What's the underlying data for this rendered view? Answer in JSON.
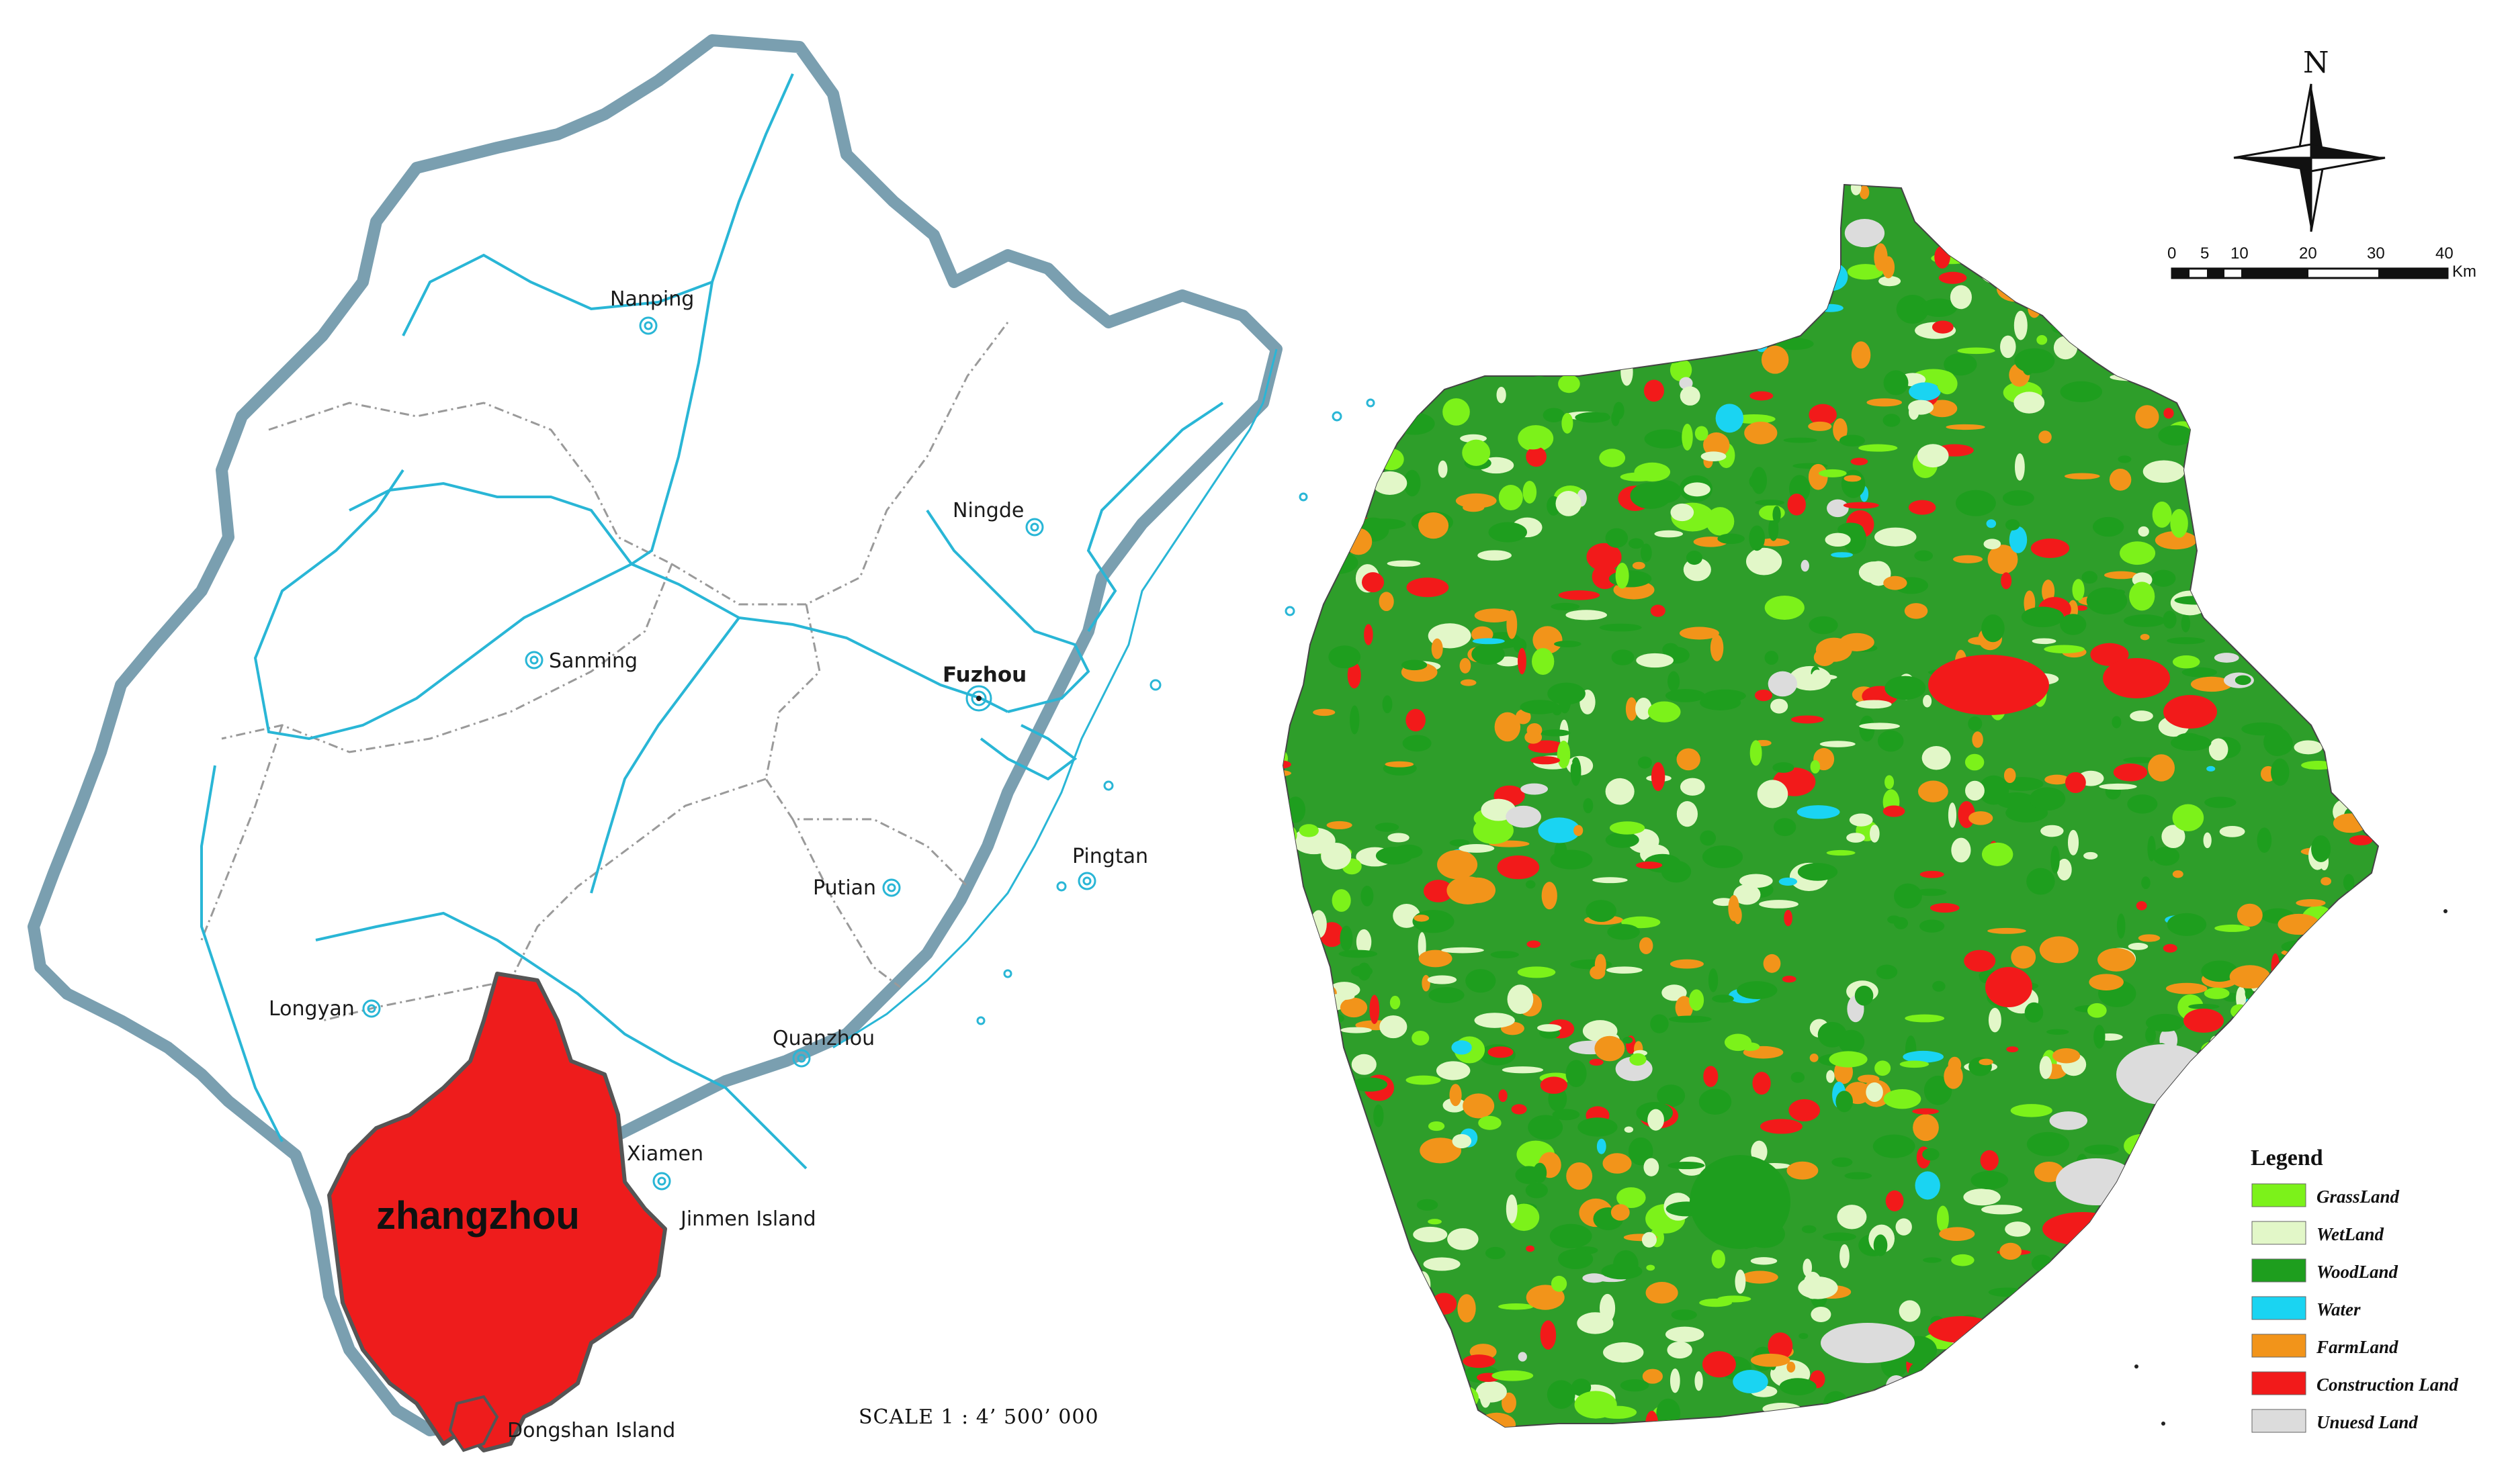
{
  "left_map": {
    "cities": [
      {
        "name": "Nanping"
      },
      {
        "name": "Ningde"
      },
      {
        "name": "Sanming"
      },
      {
        "name": "Fuzhou",
        "capital": true
      },
      {
        "name": "Pingtan"
      },
      {
        "name": "Putian"
      },
      {
        "name": "Longyan"
      },
      {
        "name": "Quanzhou"
      },
      {
        "name": "Xiamen"
      }
    ],
    "islands": [
      "Jinmen Island",
      "Dongshan Island"
    ],
    "highlight_region": "zhangzhou",
    "scale_text": "SCALE 1 : 4’ 500’ 000",
    "colors": {
      "border": "#7a9fb0",
      "river": "#29b6d6",
      "highlight": "#ee1c1c",
      "boundary": "#9a9a9a"
    }
  },
  "right_map": {
    "north_label": "N",
    "scale_bar": {
      "ticks": [
        "0",
        "5",
        "10",
        "20",
        "30",
        "40"
      ],
      "unit": "Km"
    },
    "legend": {
      "title": "Legend",
      "items": [
        {
          "label": "GrassLand",
          "color": "#7cf21a"
        },
        {
          "label": "WetLand",
          "color": "#e2f7c8"
        },
        {
          "label": "WoodLand",
          "color": "#1e9e1e"
        },
        {
          "label": "Water",
          "color": "#1ad4f2"
        },
        {
          "label": "FarmLand",
          "color": "#f2941a"
        },
        {
          "label": "Construction Land",
          "color": "#f21a1a"
        },
        {
          "label": "Unuesd Land",
          "color": "#dcdcdc"
        }
      ]
    }
  }
}
